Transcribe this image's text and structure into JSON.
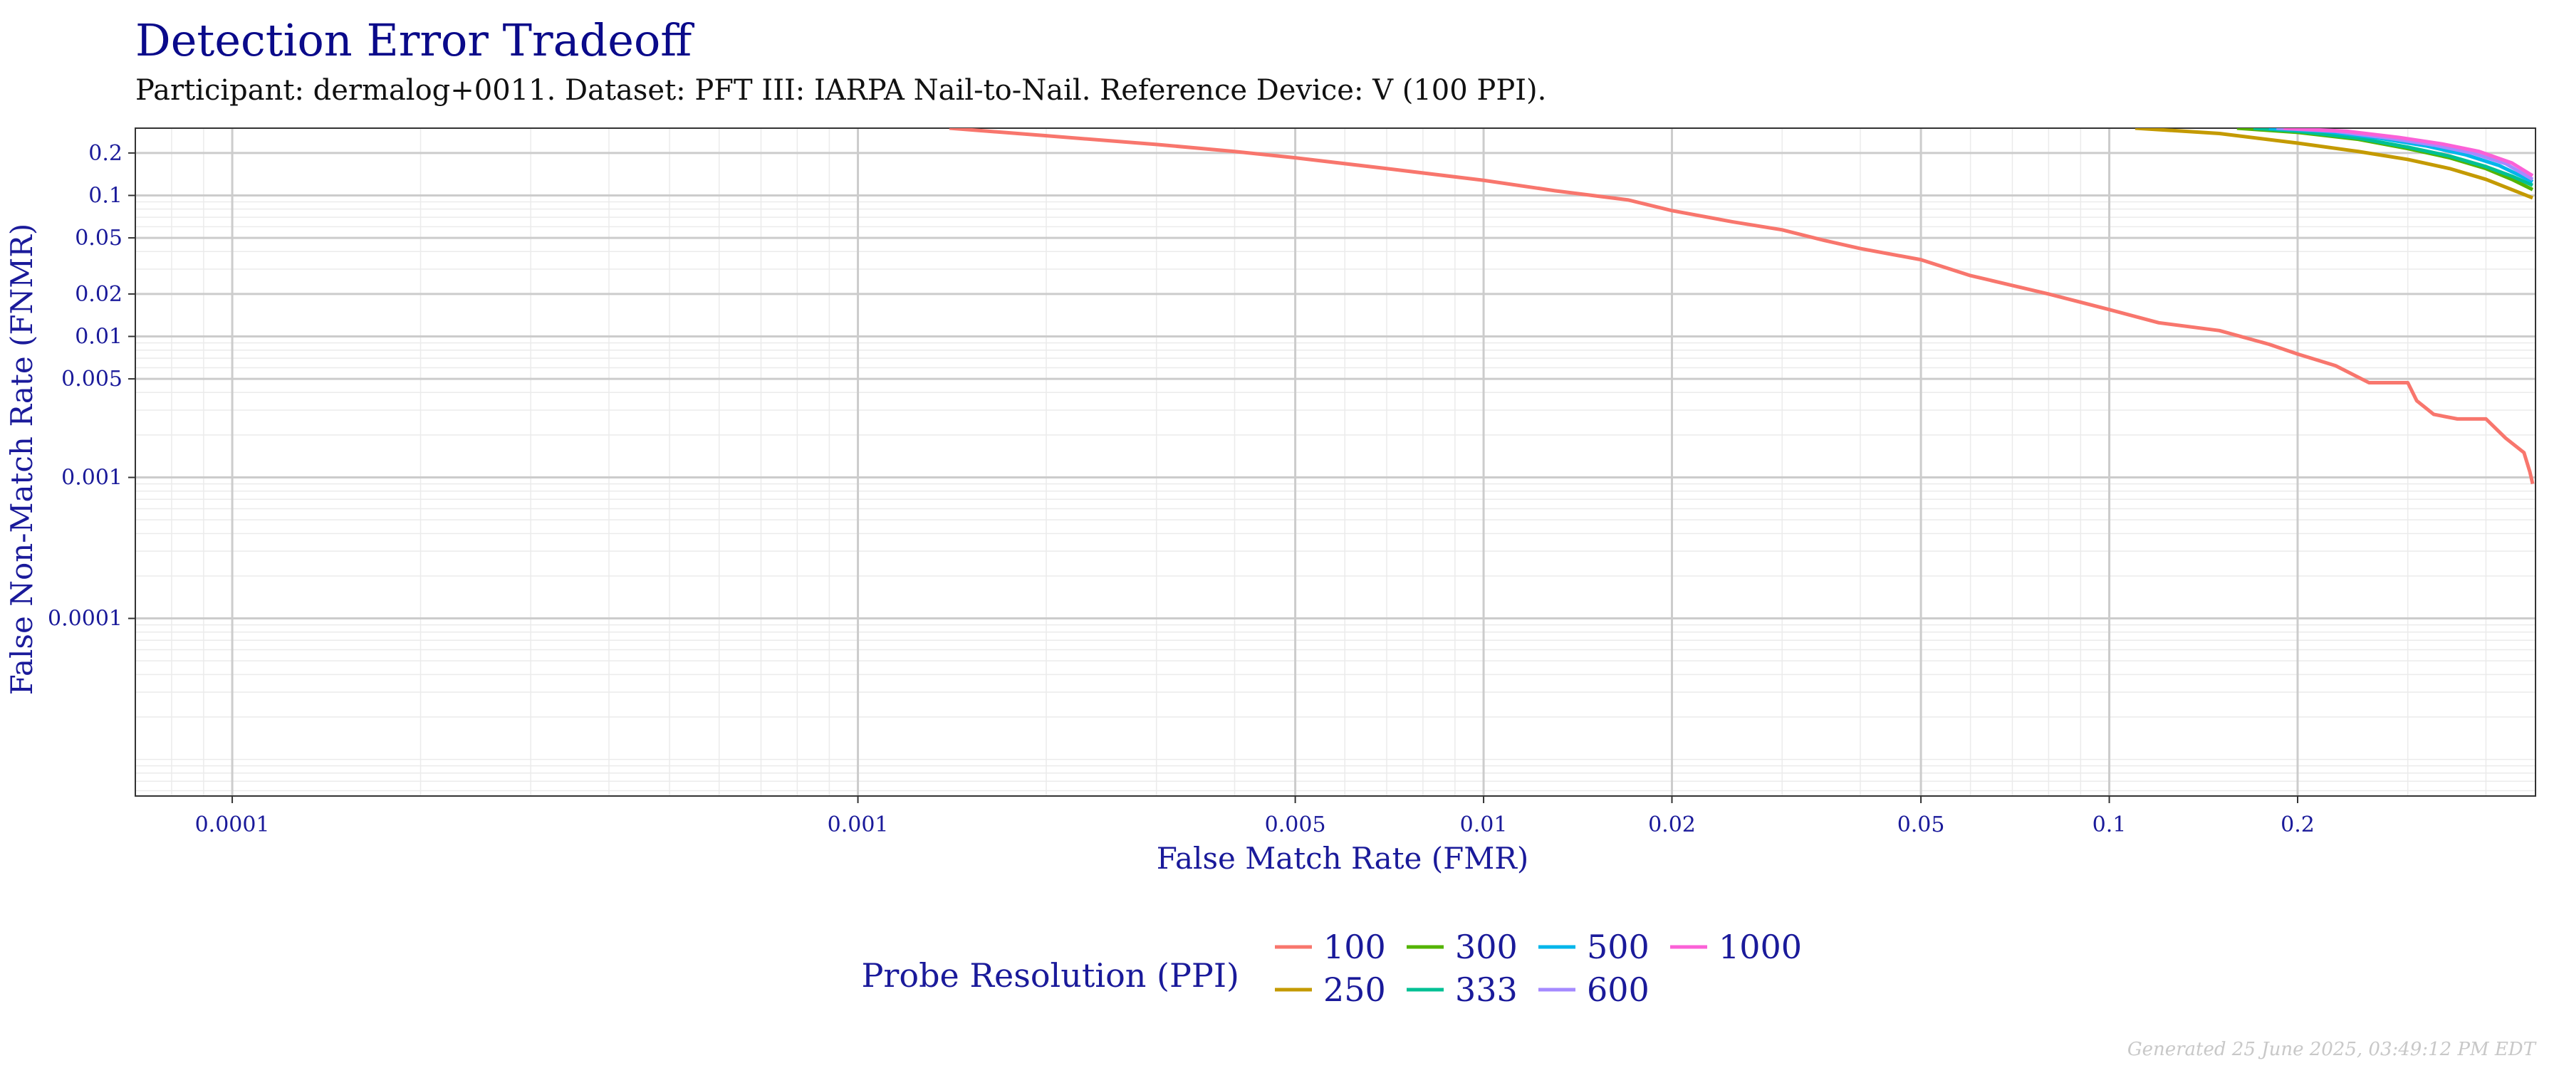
{
  "title": "Detection Error Tradeoff",
  "subtitle": "Participant: dermalog+0011. Dataset: PFT III: IARPA Nail-to-Nail. Reference Device: V (100 PPI).",
  "footer": "Generated 25 June 2025, 03:49:12 PM EDT",
  "chart_data": {
    "type": "line",
    "title": "Detection Error Tradeoff",
    "xlabel": "False Match Rate (FMR)",
    "ylabel": "False Non-Match Rate (FNMR)",
    "x_scale": "log",
    "y_scale": "log",
    "xlim": [
      7e-05,
      0.48
    ],
    "ylim": [
      5.5e-06,
      0.3
    ],
    "grid": true,
    "legend_position": "bottom",
    "x_ticks": [
      {
        "value": 0.0001,
        "label": "0.0001"
      },
      {
        "value": 0.001,
        "label": "0.001"
      },
      {
        "value": 0.005,
        "label": "0.005"
      },
      {
        "value": 0.01,
        "label": "0.01"
      },
      {
        "value": 0.02,
        "label": "0.02"
      },
      {
        "value": 0.05,
        "label": "0.05"
      },
      {
        "value": 0.1,
        "label": "0.1"
      },
      {
        "value": 0.2,
        "label": "0.2"
      }
    ],
    "y_ticks": [
      {
        "value": 0.0001,
        "label": "0.0001"
      },
      {
        "value": 0.001,
        "label": "0.001"
      },
      {
        "value": 0.005,
        "label": "0.005"
      },
      {
        "value": 0.01,
        "label": "0.01"
      },
      {
        "value": 0.02,
        "label": "0.02"
      },
      {
        "value": 0.05,
        "label": "0.05"
      },
      {
        "value": 0.1,
        "label": "0.1"
      },
      {
        "value": 0.2,
        "label": "0.2"
      }
    ],
    "legend_title": "Probe Resolution (PPI)",
    "series": [
      {
        "name": "100",
        "color": "#F8766D",
        "points": [
          [
            0.0014,
            0.3
          ],
          [
            0.002,
            0.265
          ],
          [
            0.003,
            0.23
          ],
          [
            0.004,
            0.205
          ],
          [
            0.005,
            0.185
          ],
          [
            0.007,
            0.155
          ],
          [
            0.01,
            0.128
          ],
          [
            0.013,
            0.108
          ],
          [
            0.017,
            0.093
          ],
          [
            0.02,
            0.078
          ],
          [
            0.025,
            0.065
          ],
          [
            0.03,
            0.057
          ],
          [
            0.035,
            0.048
          ],
          [
            0.04,
            0.042
          ],
          [
            0.05,
            0.035
          ],
          [
            0.06,
            0.027
          ],
          [
            0.07,
            0.023
          ],
          [
            0.08,
            0.02
          ],
          [
            0.1,
            0.0155
          ],
          [
            0.12,
            0.0125
          ],
          [
            0.15,
            0.011
          ],
          [
            0.18,
            0.0088
          ],
          [
            0.2,
            0.0075
          ],
          [
            0.23,
            0.0062
          ],
          [
            0.26,
            0.0047
          ],
          [
            0.3,
            0.0047
          ],
          [
            0.31,
            0.0035
          ],
          [
            0.33,
            0.0028
          ],
          [
            0.36,
            0.0026
          ],
          [
            0.4,
            0.0026
          ],
          [
            0.43,
            0.0019
          ],
          [
            0.46,
            0.0015
          ],
          [
            0.47,
            0.0011
          ],
          [
            0.475,
            0.0009
          ]
        ]
      },
      {
        "name": "250",
        "color": "#C49A00",
        "points": [
          [
            0.11,
            0.3
          ],
          [
            0.15,
            0.275
          ],
          [
            0.2,
            0.235
          ],
          [
            0.25,
            0.205
          ],
          [
            0.3,
            0.18
          ],
          [
            0.35,
            0.155
          ],
          [
            0.4,
            0.13
          ],
          [
            0.44,
            0.11
          ],
          [
            0.475,
            0.096
          ]
        ]
      },
      {
        "name": "300",
        "color": "#53B400",
        "points": [
          [
            0.16,
            0.3
          ],
          [
            0.2,
            0.28
          ],
          [
            0.25,
            0.25
          ],
          [
            0.3,
            0.215
          ],
          [
            0.35,
            0.185
          ],
          [
            0.4,
            0.155
          ],
          [
            0.44,
            0.13
          ],
          [
            0.475,
            0.11
          ]
        ]
      },
      {
        "name": "333",
        "color": "#00C094",
        "points": [
          [
            0.17,
            0.3
          ],
          [
            0.2,
            0.285
          ],
          [
            0.25,
            0.255
          ],
          [
            0.3,
            0.22
          ],
          [
            0.35,
            0.19
          ],
          [
            0.4,
            0.16
          ],
          [
            0.44,
            0.137
          ],
          [
            0.475,
            0.118
          ]
        ]
      },
      {
        "name": "500",
        "color": "#00B6EB",
        "points": [
          [
            0.18,
            0.3
          ],
          [
            0.22,
            0.285
          ],
          [
            0.27,
            0.255
          ],
          [
            0.32,
            0.225
          ],
          [
            0.37,
            0.195
          ],
          [
            0.42,
            0.163
          ],
          [
            0.475,
            0.125
          ]
        ]
      },
      {
        "name": "600",
        "color": "#A58AFF",
        "points": [
          [
            0.185,
            0.3
          ],
          [
            0.23,
            0.285
          ],
          [
            0.28,
            0.255
          ],
          [
            0.33,
            0.228
          ],
          [
            0.38,
            0.2
          ],
          [
            0.43,
            0.168
          ],
          [
            0.475,
            0.13
          ]
        ]
      },
      {
        "name": "1000",
        "color": "#FB61D7",
        "points": [
          [
            0.19,
            0.3
          ],
          [
            0.24,
            0.285
          ],
          [
            0.29,
            0.258
          ],
          [
            0.34,
            0.232
          ],
          [
            0.39,
            0.205
          ],
          [
            0.44,
            0.17
          ],
          [
            0.475,
            0.138
          ]
        ]
      }
    ]
  }
}
